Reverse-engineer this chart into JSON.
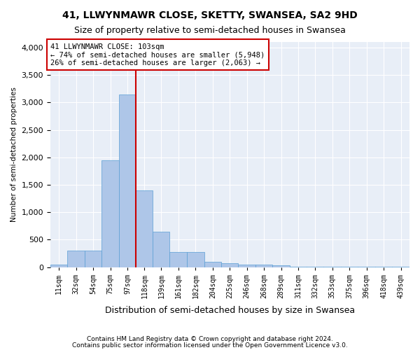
{
  "title": "41, LLWYNMAWR CLOSE, SKETTY, SWANSEA, SA2 9HD",
  "subtitle": "Size of property relative to semi-detached houses in Swansea",
  "xlabel": "Distribution of semi-detached houses by size in Swansea",
  "ylabel": "Number of semi-detached properties",
  "footer_line1": "Contains HM Land Registry data © Crown copyright and database right 2024.",
  "footer_line2": "Contains public sector information licensed under the Open Government Licence v3.0.",
  "annotation_title": "41 LLWYNMAWR CLOSE: 103sqm",
  "annotation_line1": "← 74% of semi-detached houses are smaller (5,948)",
  "annotation_line2": "26% of semi-detached houses are larger (2,063) →",
  "property_size": 103,
  "bar_color": "#aec6e8",
  "bar_edge_color": "#5a9fd4",
  "marker_line_color": "#cc0000",
  "annotation_box_color": "#cc0000",
  "background_color": "#e8eef7",
  "categories": [
    "11sqm",
    "32sqm",
    "54sqm",
    "75sqm",
    "97sqm",
    "118sqm",
    "139sqm",
    "161sqm",
    "182sqm",
    "204sqm",
    "225sqm",
    "246sqm",
    "268sqm",
    "289sqm",
    "311sqm",
    "332sqm",
    "353sqm",
    "375sqm",
    "396sqm",
    "418sqm",
    "439sqm"
  ],
  "bin_edges": [
    0,
    21.5,
    43,
    64.5,
    86,
    107.5,
    128.5,
    149.5,
    171,
    193,
    214.5,
    235.5,
    257,
    278.5,
    300,
    321.5,
    342.5,
    364,
    385.5,
    407,
    428.5,
    450
  ],
  "values": [
    50,
    300,
    300,
    1950,
    3150,
    1400,
    650,
    280,
    280,
    100,
    70,
    50,
    50,
    30,
    10,
    5,
    5,
    3,
    2,
    2,
    2
  ],
  "ylim": [
    0,
    4100
  ],
  "yticks": [
    0,
    500,
    1000,
    1500,
    2000,
    2500,
    3000,
    3500,
    4000
  ]
}
